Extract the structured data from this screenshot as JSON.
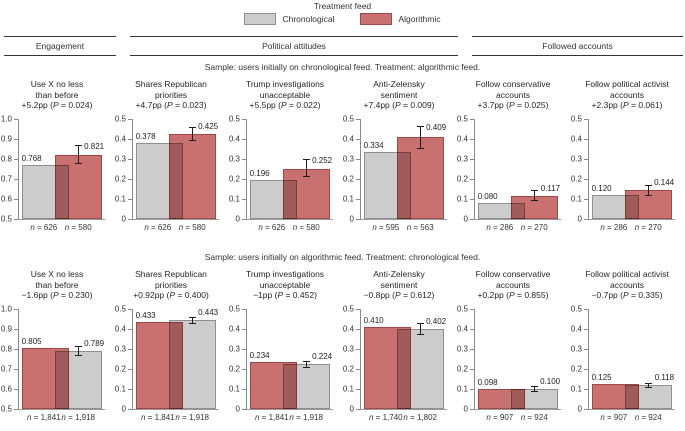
{
  "figure": {
    "legend": {
      "title": "Treatment feed",
      "items": [
        {
          "key": "chronological",
          "label": "Chronological",
          "color": "#cccccc",
          "border": "#8f8f8f"
        },
        {
          "key": "algorithmic",
          "label": "Algorithmic",
          "color": "#c97170",
          "border": "#a04846"
        }
      ]
    },
    "sections": [
      {
        "label": "Engagement"
      },
      {
        "label": "Political attitudes"
      },
      {
        "label": "Followed accounts"
      }
    ]
  },
  "chart_data": {
    "type": "bar",
    "layout": {
      "grid": "2 rows x 6 panels",
      "bar_style": "overlapping translucent pair, error bar on treatment bar"
    },
    "rows": [
      {
        "subtitle": "Sample: users initially on chronological feed. Treatment: algorithmic feed.",
        "panels": [
          {
            "title_lines": [
              "Use X no less",
              "than before"
            ],
            "effect": "+5.2pp (P = 0.024)",
            "ylim": [
              0.5,
              1.0
            ],
            "yticks": [
              "1.0",
              "0.9",
              "0.8",
              "0.7",
              "0.6",
              "0.5"
            ],
            "bars": [
              {
                "feed": "chronological",
                "value": 0.768,
                "label": "0.768",
                "n_label": "n = 626"
              },
              {
                "feed": "algorithmic",
                "value": 0.821,
                "label": "0.821",
                "n_label": "n = 580",
                "err": [
                  0.775,
                  0.868
                ]
              }
            ]
          },
          {
            "title_lines": [
              "Shares Republican",
              "priorities"
            ],
            "effect": "+4.7pp (P = 0.023)",
            "ylim": [
              0,
              0.5
            ],
            "yticks": [
              "0.5",
              "0.4",
              "0.3",
              "0.2",
              "0.1",
              "0"
            ],
            "bars": [
              {
                "feed": "chronological",
                "value": 0.378,
                "label": "0.378",
                "n_label": "n = 626"
              },
              {
                "feed": "algorithmic",
                "value": 0.425,
                "label": "0.425",
                "n_label": "n = 580",
                "err": [
                  0.392,
                  0.458
                ]
              }
            ]
          },
          {
            "title_lines": [
              "Trump investigations",
              "unacceptable"
            ],
            "effect": "+5.5pp (P = 0.022)",
            "ylim": [
              0,
              0.5
            ],
            "yticks": [
              "0.5",
              "0.4",
              "0.3",
              "0.2",
              "0.1",
              "0"
            ],
            "bars": [
              {
                "feed": "chronological",
                "value": 0.196,
                "label": "0.196",
                "n_label": "n = 626"
              },
              {
                "feed": "algorithmic",
                "value": 0.252,
                "label": "0.252",
                "n_label": "n = 580",
                "err": [
                  0.208,
                  0.298
                ]
              }
            ]
          },
          {
            "title_lines": [
              "Anti-Zelensky",
              "sentiment"
            ],
            "effect": "+7.4pp (P = 0.009)",
            "ylim": [
              0,
              0.5
            ],
            "yticks": [
              "0.5",
              "0.4",
              "0.3",
              "0.2",
              "0.1",
              "0"
            ],
            "bars": [
              {
                "feed": "chronological",
                "value": 0.334,
                "label": "0.334",
                "n_label": "n = 595"
              },
              {
                "feed": "algorithmic",
                "value": 0.409,
                "label": "0.409",
                "n_label": "n = 563",
                "err": [
                  0.352,
                  0.465
                ]
              }
            ]
          },
          {
            "title_lines": [
              "Follow conservative",
              "accounts"
            ],
            "effect": "+3.7pp (P = 0.025)",
            "ylim": [
              0,
              0.5
            ],
            "yticks": [
              "0.5",
              "0.4",
              "0.3",
              "0.2",
              "0.1",
              "0"
            ],
            "bars": [
              {
                "feed": "chronological",
                "value": 0.08,
                "label": "0.080",
                "n_label": "n = 286"
              },
              {
                "feed": "algorithmic",
                "value": 0.117,
                "label": "0.117",
                "n_label": "n = 270",
                "err": [
                  0.088,
                  0.147
                ]
              }
            ]
          },
          {
            "title_lines": [
              "Follow political activist",
              "accounts"
            ],
            "effect": "+2.3pp (P = 0.061)",
            "ylim": [
              0,
              0.5
            ],
            "yticks": [
              "0.5",
              "0.4",
              "0.3",
              "0.2",
              "0.1",
              "0"
            ],
            "bars": [
              {
                "feed": "chronological",
                "value": 0.12,
                "label": "0.120",
                "n_label": "n = 286"
              },
              {
                "feed": "algorithmic",
                "value": 0.144,
                "label": "0.144",
                "n_label": "n = 270",
                "err": [
                  0.116,
                  0.172
                ]
              }
            ]
          }
        ]
      },
      {
        "subtitle": "Sample: users initially on algorithmic feed. Treatment: chronological feed.",
        "panels": [
          {
            "title_lines": [
              "Use X no less",
              "than before"
            ],
            "effect": "−1.6pp (P = 0.230)",
            "ylim": [
              0.5,
              1.0
            ],
            "yticks": [
              "1.0",
              "0.9",
              "0.8",
              "0.7",
              "0.6",
              "0.5"
            ],
            "bars": [
              {
                "feed": "algorithmic",
                "value": 0.805,
                "label": "0.805",
                "n_label": "n = 1,841"
              },
              {
                "feed": "chronological",
                "value": 0.789,
                "label": "0.789",
                "n_label": "n = 1,918",
                "err": [
                  0.763,
                  0.815
                ]
              }
            ]
          },
          {
            "title_lines": [
              "Shares Republican",
              "priorities"
            ],
            "effect": "+0.92pp (P = 0.400)",
            "ylim": [
              0,
              0.5
            ],
            "yticks": [
              "0.5",
              "0.4",
              "0.3",
              "0.2",
              "0.1",
              "0"
            ],
            "bars": [
              {
                "feed": "algorithmic",
                "value": 0.433,
                "label": "0.433",
                "n_label": "n = 1,841"
              },
              {
                "feed": "chronological",
                "value": 0.443,
                "label": "0.443",
                "n_label": "n = 1,918",
                "err": [
                  0.427,
                  0.459
                ]
              }
            ]
          },
          {
            "title_lines": [
              "Trump investigations",
              "unacceptable"
            ],
            "effect": "−1pp (P = 0.452)",
            "ylim": [
              0,
              0.5
            ],
            "yticks": [
              "0.5",
              "0.4",
              "0.3",
              "0.2",
              "0.1",
              "0"
            ],
            "bars": [
              {
                "feed": "algorithmic",
                "value": 0.234,
                "label": "0.234",
                "n_label": "n = 1,841"
              },
              {
                "feed": "chronological",
                "value": 0.224,
                "label": "0.224",
                "n_label": "n = 1,918",
                "err": [
                  0.207,
                  0.241
                ]
              }
            ]
          },
          {
            "title_lines": [
              "Anti-Zelensky",
              "sentiment"
            ],
            "effect": "−0.8pp (P = 0.612)",
            "ylim": [
              0,
              0.5
            ],
            "yticks": [
              "0.5",
              "0.4",
              "0.3",
              "0.2",
              "0.1",
              "0"
            ],
            "bars": [
              {
                "feed": "algorithmic",
                "value": 0.41,
                "label": "0.410",
                "n_label": "n = 1,740"
              },
              {
                "feed": "chronological",
                "value": 0.402,
                "label": "0.402",
                "n_label": "n = 1,802",
                "err": [
                  0.372,
                  0.432
                ]
              }
            ]
          },
          {
            "title_lines": [
              "Follow conservative",
              "accounts"
            ],
            "effect": "+0.2pp (P = 0.855)",
            "ylim": [
              0,
              0.5
            ],
            "yticks": [
              "0.5",
              "0.4",
              "0.3",
              "0.2",
              "0.1",
              "0"
            ],
            "bars": [
              {
                "feed": "algorithmic",
                "value": 0.098,
                "label": "0.098",
                "n_label": "n = 907"
              },
              {
                "feed": "chronological",
                "value": 0.1,
                "label": "0.100",
                "n_label": "n = 924",
                "err": [
                  0.084,
                  0.116
                ]
              }
            ]
          },
          {
            "title_lines": [
              "Follow political activist",
              "accounts"
            ],
            "effect": "−0.7pp (P = 0.335)",
            "ylim": [
              0,
              0.5
            ],
            "yticks": [
              "0.5",
              "0.4",
              "0.3",
              "0.2",
              "0.1",
              "0"
            ],
            "bars": [
              {
                "feed": "algorithmic",
                "value": 0.125,
                "label": "0.125",
                "n_label": "n = 907"
              },
              {
                "feed": "chronological",
                "value": 0.118,
                "label": "0.118",
                "n_label": "n = 924",
                "err": [
                  0.104,
                  0.132
                ]
              }
            ]
          }
        ]
      }
    ]
  }
}
